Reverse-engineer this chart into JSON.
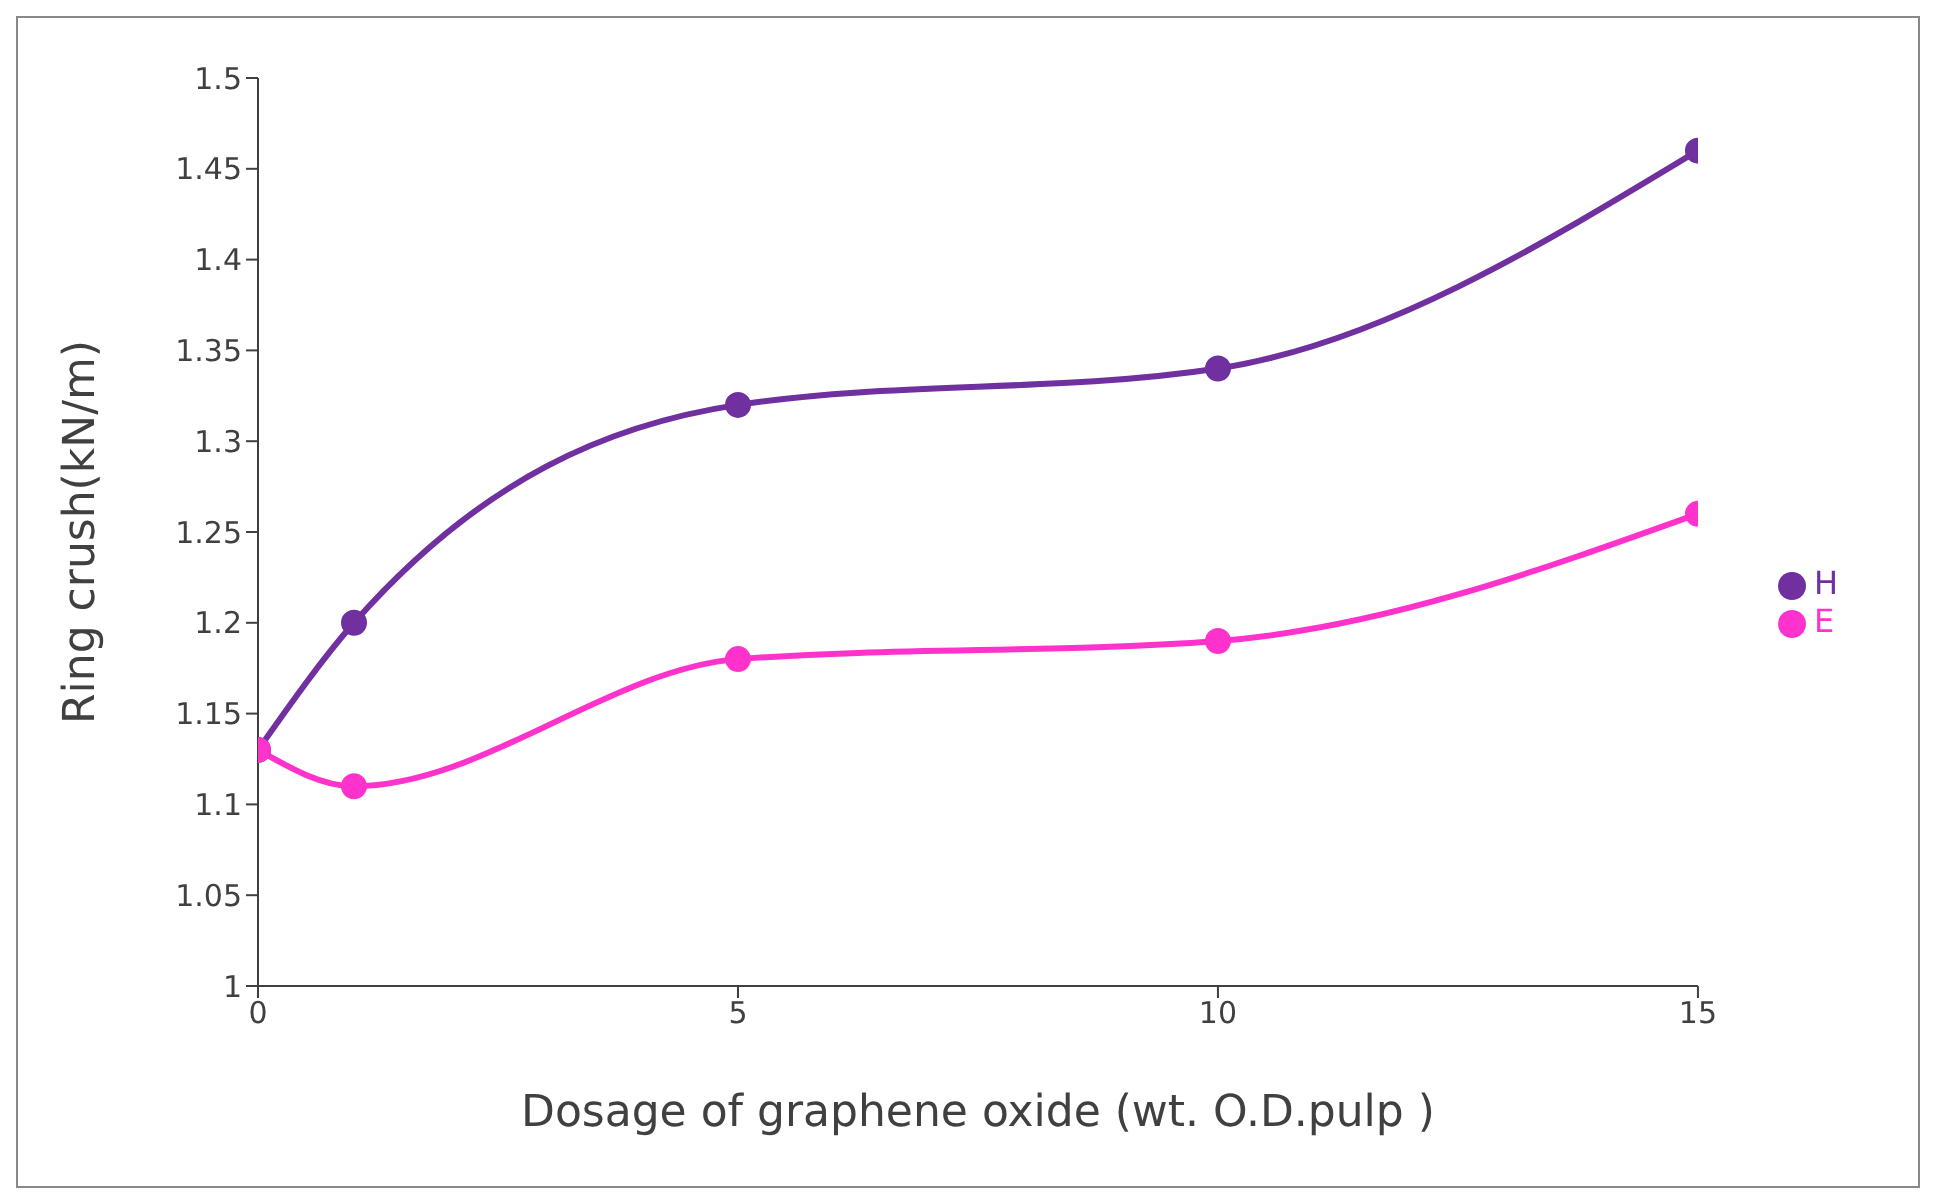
{
  "chart_data": {
    "type": "line",
    "xlabel": "Dosage of graphene oxide (wt. O.D.pulp )",
    "ylabel": "Ring crush(kN/m)",
    "x": [
      0,
      1,
      5,
      10,
      15
    ],
    "series": [
      {
        "name": "H",
        "color": "#7030a0",
        "values": [
          1.13,
          1.2,
          1.32,
          1.34,
          1.46
        ]
      },
      {
        "name": "E",
        "color": "#ff33cc",
        "values": [
          1.13,
          1.11,
          1.18,
          1.19,
          1.26
        ]
      }
    ],
    "xlim": [
      0,
      15
    ],
    "xticks": [
      0,
      5,
      10,
      15
    ],
    "ylim": [
      1,
      1.5
    ],
    "yticks": [
      1,
      1.05,
      1.1,
      1.15,
      1.2,
      1.25,
      1.3,
      1.35,
      1.4,
      1.45,
      1.5
    ],
    "grid": false,
    "legend": "right",
    "marker": "circle",
    "line_style": "solid"
  }
}
